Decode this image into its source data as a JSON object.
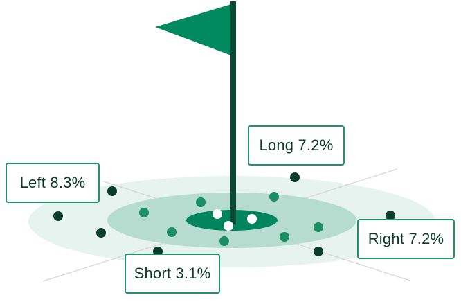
{
  "colors": {
    "outer_ring": "#e6f3ee",
    "middle_ring": "#b5dccf",
    "cup_ring": "#02855c",
    "flag": "#008a5e",
    "pole": "#0a4a35",
    "dot_dark": "#0c3d2c",
    "dot_green": "#1a8f66",
    "dot_white": "#ffffff",
    "guide_line": "#d6d6d6",
    "callout_border": "#1e9468",
    "callout_text": "#0b3b2c"
  },
  "callouts": {
    "long": "Long 7.2%",
    "left": "Left 8.3%",
    "right": "Right 7.2%",
    "short": "Short 3.1%"
  },
  "icons": {
    "flag": "flag-icon"
  }
}
